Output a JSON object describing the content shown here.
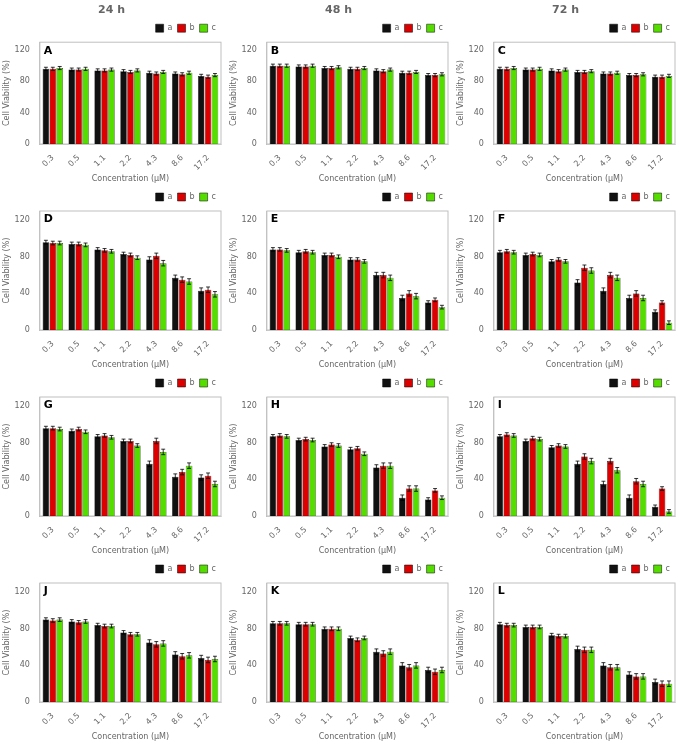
{
  "chart_data": [
    {
      "type": "bar",
      "title": "24 h",
      "annotations": [
        "A"
      ],
      "xlabel": "Concentration (μM)",
      "ylabel": "Cell Viability (%)",
      "categories": [
        "0.3",
        "0.5",
        "1.1",
        "2.2",
        "4.3",
        "8.6",
        "17.2"
      ],
      "series": [
        {
          "name": "a",
          "color": "#111111",
          "values": [
            96,
            95,
            94,
            93,
            91,
            90,
            87
          ],
          "errors": [
            2,
            2,
            2,
            2,
            2,
            2,
            2
          ]
        },
        {
          "name": "b",
          "color": "#dd0000",
          "values": [
            96,
            95,
            94,
            92,
            90,
            89,
            86
          ],
          "errors": [
            2,
            2,
            2,
            2,
            2,
            2,
            2
          ]
        },
        {
          "name": "c",
          "color": "#55dd00",
          "values": [
            97,
            96,
            95,
            94,
            92,
            91,
            88
          ],
          "errors": [
            2,
            2,
            2,
            2,
            2,
            2,
            2
          ]
        }
      ],
      "ylim": [
        0,
        130
      ],
      "yticks": [
        0,
        40,
        80,
        120
      ],
      "grid": false,
      "legend": "upper right"
    },
    {
      "type": "bar",
      "title": "48 h",
      "annotations": [
        "B"
      ],
      "xlabel": "Concentration (μM)",
      "ylabel": "Cell Viability (%)",
      "categories": [
        "0.3",
        "0.5",
        "1.1",
        "2.2",
        "4.3",
        "8.6",
        "17.2"
      ],
      "series": [
        {
          "name": "a",
          "color": "#111111",
          "values": [
            100,
            99,
            97,
            96,
            94,
            91,
            88
          ],
          "errors": [
            2,
            2,
            2,
            2,
            2,
            2,
            2
          ]
        },
        {
          "name": "b",
          "color": "#dd0000",
          "values": [
            100,
            99,
            97,
            96,
            93,
            91,
            88
          ],
          "errors": [
            2,
            2,
            2,
            2,
            2,
            2,
            2
          ]
        },
        {
          "name": "c",
          "color": "#55dd00",
          "values": [
            100,
            100,
            98,
            97,
            95,
            92,
            89
          ],
          "errors": [
            2,
            2,
            2,
            2,
            2,
            2,
            2
          ]
        }
      ],
      "ylim": [
        0,
        130
      ],
      "yticks": [
        0,
        40,
        80,
        120
      ],
      "grid": false,
      "legend": "upper right"
    },
    {
      "type": "bar",
      "title": "72 h",
      "annotations": [
        "C"
      ],
      "xlabel": "Concentration (μM)",
      "ylabel": "Cell Viability (%)",
      "categories": [
        "0.3",
        "0.5",
        "1.1",
        "2.2",
        "4.3",
        "8.6",
        "17.2"
      ],
      "series": [
        {
          "name": "a",
          "color": "#111111",
          "values": [
            96,
            95,
            94,
            92,
            90,
            88,
            86
          ],
          "errors": [
            2,
            2,
            2,
            2,
            2,
            2,
            2
          ]
        },
        {
          "name": "b",
          "color": "#dd0000",
          "values": [
            96,
            95,
            93,
            92,
            90,
            88,
            86
          ],
          "errors": [
            2,
            2,
            2,
            2,
            2,
            2,
            2
          ]
        },
        {
          "name": "c",
          "color": "#55dd00",
          "values": [
            97,
            96,
            95,
            93,
            91,
            89,
            87
          ],
          "errors": [
            2,
            2,
            2,
            2,
            2,
            2,
            2
          ]
        }
      ],
      "ylim": [
        0,
        130
      ],
      "yticks": [
        0,
        40,
        80,
        120
      ],
      "grid": false,
      "legend": "upper right"
    },
    {
      "type": "bar",
      "annotations": [
        "D"
      ],
      "xlabel": "Concentration (μM)",
      "ylabel": "Cell Viability (%)",
      "categories": [
        "0.3",
        "0.5",
        "1.1",
        "2.2",
        "4.3",
        "8.6",
        "17.2"
      ],
      "series": [
        {
          "name": "a",
          "color": "#111111",
          "values": [
            96,
            94,
            88,
            83,
            77,
            57,
            43
          ],
          "errors": [
            2,
            2,
            2,
            2,
            3,
            3,
            3
          ]
        },
        {
          "name": "b",
          "color": "#dd0000",
          "values": [
            95,
            94,
            87,
            82,
            81,
            55,
            44
          ],
          "errors": [
            2,
            2,
            2,
            2,
            3,
            3,
            3
          ]
        },
        {
          "name": "c",
          "color": "#55dd00",
          "values": [
            95,
            93,
            86,
            79,
            73,
            53,
            39
          ],
          "errors": [
            2,
            2,
            2,
            2,
            3,
            3,
            3
          ]
        }
      ],
      "ylim": [
        0,
        130
      ],
      "yticks": [
        0,
        40,
        80,
        120
      ],
      "grid": false,
      "legend": "upper right"
    },
    {
      "type": "bar",
      "annotations": [
        "E"
      ],
      "xlabel": "Concentration (μM)",
      "ylabel": "Cell Viability (%)",
      "categories": [
        "0.3",
        "0.5",
        "1.1",
        "2.2",
        "4.3",
        "8.6",
        "17.2"
      ],
      "series": [
        {
          "name": "a",
          "color": "#111111",
          "values": [
            88,
            85,
            82,
            77,
            60,
            35,
            30
          ],
          "errors": [
            2,
            2,
            2,
            2,
            3,
            3,
            2
          ]
        },
        {
          "name": "b",
          "color": "#dd0000",
          "values": [
            88,
            86,
            82,
            77,
            60,
            40,
            33
          ],
          "errors": [
            2,
            2,
            2,
            2,
            3,
            3,
            2
          ]
        },
        {
          "name": "c",
          "color": "#55dd00",
          "values": [
            87,
            85,
            80,
            75,
            57,
            37,
            25
          ],
          "errors": [
            2,
            2,
            2,
            2,
            3,
            3,
            2
          ]
        }
      ],
      "ylim": [
        0,
        130
      ],
      "yticks": [
        0,
        40,
        80,
        120
      ],
      "grid": false,
      "legend": "upper right"
    },
    {
      "type": "bar",
      "annotations": [
        "F"
      ],
      "xlabel": "Concentration (μM)",
      "ylabel": "Cell Viability (%)",
      "categories": [
        "0.3",
        "0.5",
        "1.1",
        "2.2",
        "4.3",
        "8.6",
        "17.2"
      ],
      "series": [
        {
          "name": "a",
          "color": "#111111",
          "values": [
            85,
            82,
            75,
            52,
            43,
            35,
            20
          ],
          "errors": [
            2,
            2,
            2,
            3,
            3,
            3,
            2
          ]
        },
        {
          "name": "b",
          "color": "#dd0000",
          "values": [
            86,
            83,
            77,
            68,
            60,
            40,
            30
          ],
          "errors": [
            2,
            2,
            2,
            3,
            3,
            3,
            2
          ]
        },
        {
          "name": "c",
          "color": "#55dd00",
          "values": [
            85,
            82,
            75,
            65,
            57,
            35,
            8
          ],
          "errors": [
            2,
            2,
            2,
            3,
            3,
            3,
            2
          ]
        }
      ],
      "ylim": [
        0,
        130
      ],
      "yticks": [
        0,
        40,
        80,
        120
      ],
      "grid": false,
      "legend": "upper right"
    },
    {
      "type": "bar",
      "annotations": [
        "G"
      ],
      "xlabel": "Concentration (μM)",
      "ylabel": "Cell Viability (%)",
      "categories": [
        "0.3",
        "0.5",
        "1.1",
        "2.2",
        "4.3",
        "8.6",
        "17.2"
      ],
      "series": [
        {
          "name": "a",
          "color": "#111111",
          "values": [
            96,
            93,
            87,
            82,
            57,
            43,
            42
          ],
          "errors": [
            2,
            2,
            2,
            2,
            3,
            3,
            3
          ]
        },
        {
          "name": "b",
          "color": "#dd0000",
          "values": [
            96,
            95,
            88,
            82,
            82,
            48,
            44
          ],
          "errors": [
            2,
            2,
            2,
            2,
            3,
            3,
            3
          ]
        },
        {
          "name": "c",
          "color": "#55dd00",
          "values": [
            95,
            92,
            86,
            77,
            70,
            55,
            35
          ],
          "errors": [
            2,
            2,
            2,
            2,
            3,
            3,
            3
          ]
        }
      ],
      "ylim": [
        0,
        130
      ],
      "yticks": [
        0,
        40,
        80,
        120
      ],
      "grid": false,
      "legend": "upper right"
    },
    {
      "type": "bar",
      "annotations": [
        "H"
      ],
      "xlabel": "Concentration (μM)",
      "ylabel": "Cell Viability (%)",
      "categories": [
        "0.3",
        "0.5",
        "1.1",
        "2.2",
        "4.3",
        "8.6",
        "17.2"
      ],
      "series": [
        {
          "name": "a",
          "color": "#111111",
          "values": [
            87,
            83,
            76,
            73,
            53,
            20,
            18
          ],
          "errors": [
            2,
            2,
            2,
            2,
            3,
            3,
            2
          ]
        },
        {
          "name": "b",
          "color": "#dd0000",
          "values": [
            88,
            84,
            78,
            74,
            55,
            30,
            28
          ],
          "errors": [
            2,
            2,
            2,
            2,
            3,
            3,
            2
          ]
        },
        {
          "name": "c",
          "color": "#55dd00",
          "values": [
            87,
            83,
            77,
            68,
            55,
            30,
            20
          ],
          "errors": [
            2,
            2,
            2,
            2,
            3,
            3,
            2
          ]
        }
      ],
      "ylim": [
        0,
        130
      ],
      "yticks": [
        0,
        40,
        80,
        120
      ],
      "grid": false,
      "legend": "upper right"
    },
    {
      "type": "bar",
      "annotations": [
        "I"
      ],
      "xlabel": "Concentration (μM)",
      "ylabel": "Cell Viability (%)",
      "categories": [
        "0.3",
        "0.5",
        "1.1",
        "2.2",
        "4.3",
        "8.6",
        "17.2"
      ],
      "series": [
        {
          "name": "a",
          "color": "#111111",
          "values": [
            87,
            82,
            75,
            57,
            35,
            20,
            10
          ],
          "errors": [
            2,
            2,
            2,
            3,
            3,
            3,
            2
          ]
        },
        {
          "name": "b",
          "color": "#dd0000",
          "values": [
            89,
            85,
            77,
            65,
            60,
            38,
            30
          ],
          "errors": [
            2,
            2,
            2,
            3,
            3,
            3,
            2
          ]
        },
        {
          "name": "c",
          "color": "#55dd00",
          "values": [
            88,
            84,
            76,
            60,
            50,
            35,
            5
          ],
          "errors": [
            2,
            2,
            2,
            3,
            3,
            3,
            2
          ]
        }
      ],
      "ylim": [
        0,
        130
      ],
      "yticks": [
        0,
        40,
        80,
        120
      ],
      "grid": false,
      "legend": "upper right"
    },
    {
      "type": "bar",
      "annotations": [
        "J"
      ],
      "xlabel": "Concentration (μM)",
      "ylabel": "Cell Viability (%)",
      "categories": [
        "0.3",
        "0.5",
        "1.1",
        "2.2",
        "4.3",
        "8.6",
        "17.2"
      ],
      "series": [
        {
          "name": "a",
          "color": "#111111",
          "values": [
            90,
            88,
            84,
            76,
            65,
            52,
            48
          ],
          "errors": [
            2,
            2,
            2,
            2,
            3,
            3,
            3
          ]
        },
        {
          "name": "b",
          "color": "#dd0000",
          "values": [
            89,
            87,
            83,
            74,
            63,
            50,
            46
          ],
          "errors": [
            2,
            2,
            2,
            2,
            3,
            3,
            3
          ]
        },
        {
          "name": "c",
          "color": "#55dd00",
          "values": [
            90,
            88,
            83,
            74,
            64,
            51,
            47
          ],
          "errors": [
            2,
            2,
            2,
            2,
            3,
            3,
            3
          ]
        }
      ],
      "ylim": [
        0,
        130
      ],
      "yticks": [
        0,
        40,
        80,
        120
      ],
      "grid": false,
      "legend": "upper right"
    },
    {
      "type": "bar",
      "annotations": [
        "K"
      ],
      "xlabel": "Concentration (μM)",
      "ylabel": "Cell Viability (%)",
      "categories": [
        "0.3",
        "0.5",
        "1.1",
        "2.2",
        "4.3",
        "8.6",
        "17.2"
      ],
      "series": [
        {
          "name": "a",
          "color": "#111111",
          "values": [
            86,
            85,
            80,
            70,
            55,
            40,
            35
          ],
          "errors": [
            2,
            2,
            2,
            2,
            3,
            3,
            3
          ]
        },
        {
          "name": "b",
          "color": "#dd0000",
          "values": [
            86,
            85,
            80,
            68,
            53,
            38,
            33
          ],
          "errors": [
            2,
            2,
            2,
            2,
            3,
            3,
            3
          ]
        },
        {
          "name": "c",
          "color": "#55dd00",
          "values": [
            86,
            85,
            80,
            70,
            55,
            40,
            35
          ],
          "errors": [
            2,
            2,
            2,
            2,
            3,
            3,
            3
          ]
        }
      ],
      "ylim": [
        0,
        130
      ],
      "yticks": [
        0,
        40,
        80,
        120
      ],
      "grid": false,
      "legend": "upper right"
    },
    {
      "type": "bar",
      "annotations": [
        "L"
      ],
      "xlabel": "Concentration (μM)",
      "ylabel": "Cell Viability (%)",
      "categories": [
        "0.3",
        "0.5",
        "1.1",
        "2.2",
        "4.3",
        "8.6",
        "17.2"
      ],
      "series": [
        {
          "name": "a",
          "color": "#111111",
          "values": [
            85,
            82,
            73,
            58,
            40,
            30,
            22
          ],
          "errors": [
            2,
            2,
            2,
            3,
            3,
            3,
            3
          ]
        },
        {
          "name": "b",
          "color": "#dd0000",
          "values": [
            84,
            82,
            72,
            57,
            38,
            28,
            20
          ],
          "errors": [
            2,
            2,
            2,
            3,
            3,
            3,
            3
          ]
        },
        {
          "name": "c",
          "color": "#55dd00",
          "values": [
            84,
            82,
            72,
            57,
            38,
            28,
            20
          ],
          "errors": [
            2,
            2,
            2,
            3,
            3,
            3,
            3
          ]
        }
      ],
      "ylim": [
        0,
        130
      ],
      "yticks": [
        0,
        40,
        80,
        120
      ],
      "grid": false,
      "legend": "upper right"
    }
  ]
}
